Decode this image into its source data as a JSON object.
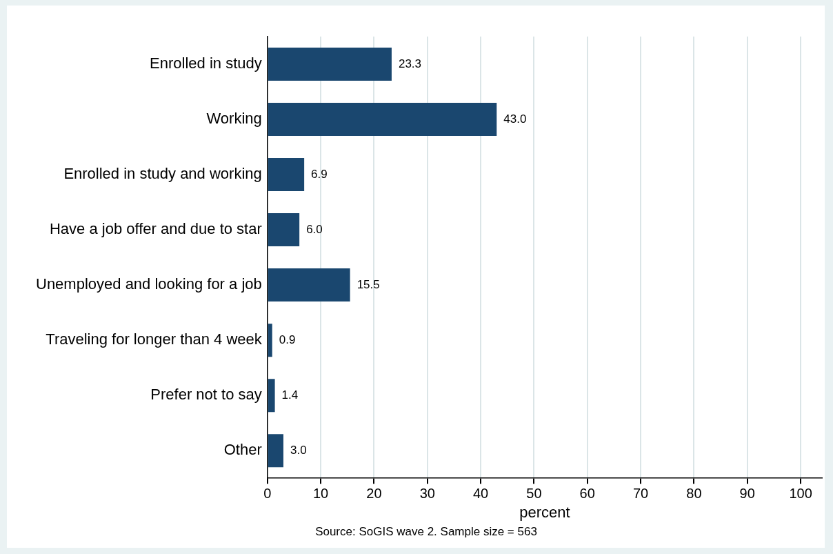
{
  "chart_data": {
    "type": "bar",
    "orientation": "horizontal",
    "categories": [
      "Enrolled in study",
      "Working",
      "Enrolled in study and working",
      "Have a job offer and due to star",
      "Unemployed and looking for a job",
      "Traveling for longer than 4 week",
      "Prefer not to say",
      "Other"
    ],
    "values": [
      23.3,
      43.0,
      6.9,
      6.0,
      15.5,
      0.9,
      1.4,
      3.0
    ],
    "color": "#1a476f",
    "value_labels": [
      "23.3",
      "43.0",
      "6.9",
      "6.0",
      "15.5",
      "0.9",
      "1.4",
      "3.0"
    ],
    "xlim": [
      0,
      104
    ],
    "xticks": [
      0,
      10,
      20,
      30,
      40,
      50,
      60,
      70,
      80,
      90,
      100
    ],
    "xlabel": "percent",
    "grid": "x",
    "legend": false,
    "annotations": [
      "Source: SoGIS wave 2. Sample size = 563"
    ]
  }
}
